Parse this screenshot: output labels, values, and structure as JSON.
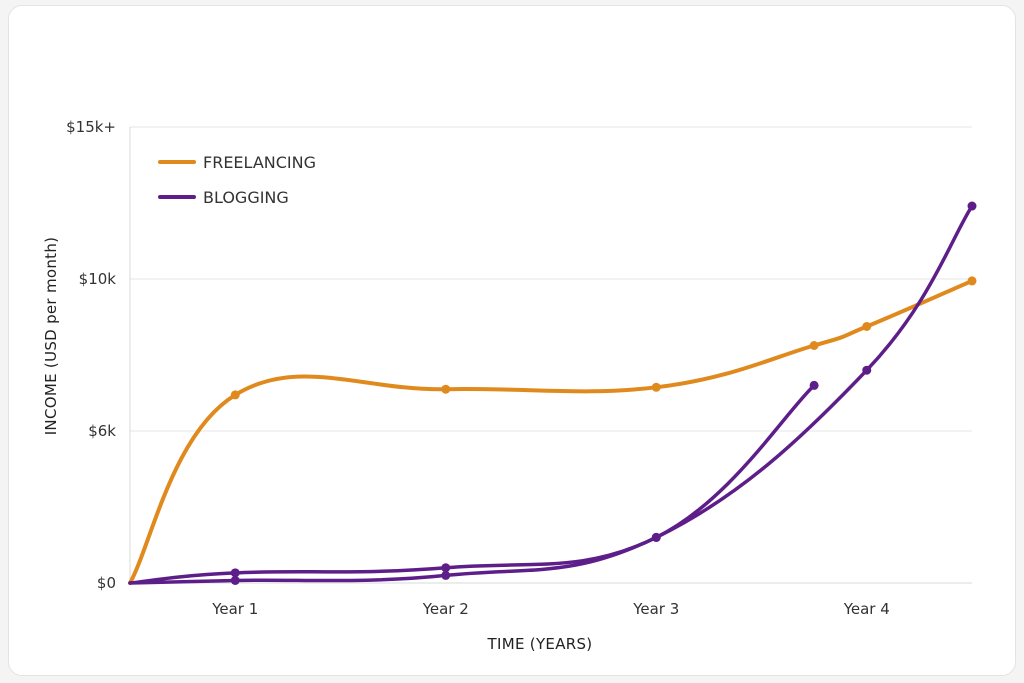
{
  "chart_data": {
    "type": "line",
    "title": "",
    "xlabel": "TIME (YEARS)",
    "ylabel": "INCOME (USD per month)",
    "xlim": [
      0.5,
      4.5
    ],
    "x_ticks": [
      1,
      2,
      3,
      4
    ],
    "x_tick_labels": [
      "Year 1",
      "Year 2",
      "Year 3",
      "Year 4"
    ],
    "y_ticks": [
      0,
      6,
      10,
      15
    ],
    "y_tick_labels": [
      "$0",
      "$6k",
      "$10k",
      "$15k+"
    ],
    "y_units": "thousand USD per month",
    "y_scale_note": "ticks evenly spaced",
    "grid": "horizontal",
    "legend_position": "top-left",
    "series": [
      {
        "name": "FREELANCING",
        "color": "#E08A1E",
        "x": [
          0.5,
          1,
          2,
          3,
          3.75,
          4,
          4.5
        ],
        "y": [
          0,
          6.95,
          7.1,
          7.15,
          8.25,
          8.75,
          9.95
        ]
      },
      {
        "name": "BLOGGING",
        "color": "#5E1E8A",
        "x": [
          0.5,
          1,
          2,
          3,
          3.75
        ],
        "y": [
          0,
          0.4,
          0.6,
          1.8,
          7.2
        ]
      },
      {
        "color": "#5E1E8A",
        "x": [
          0.5,
          1,
          2,
          3,
          4,
          4.5
        ],
        "y": [
          0,
          0.1,
          0.3,
          1.8,
          7.6,
          12.4
        ]
      }
    ]
  }
}
